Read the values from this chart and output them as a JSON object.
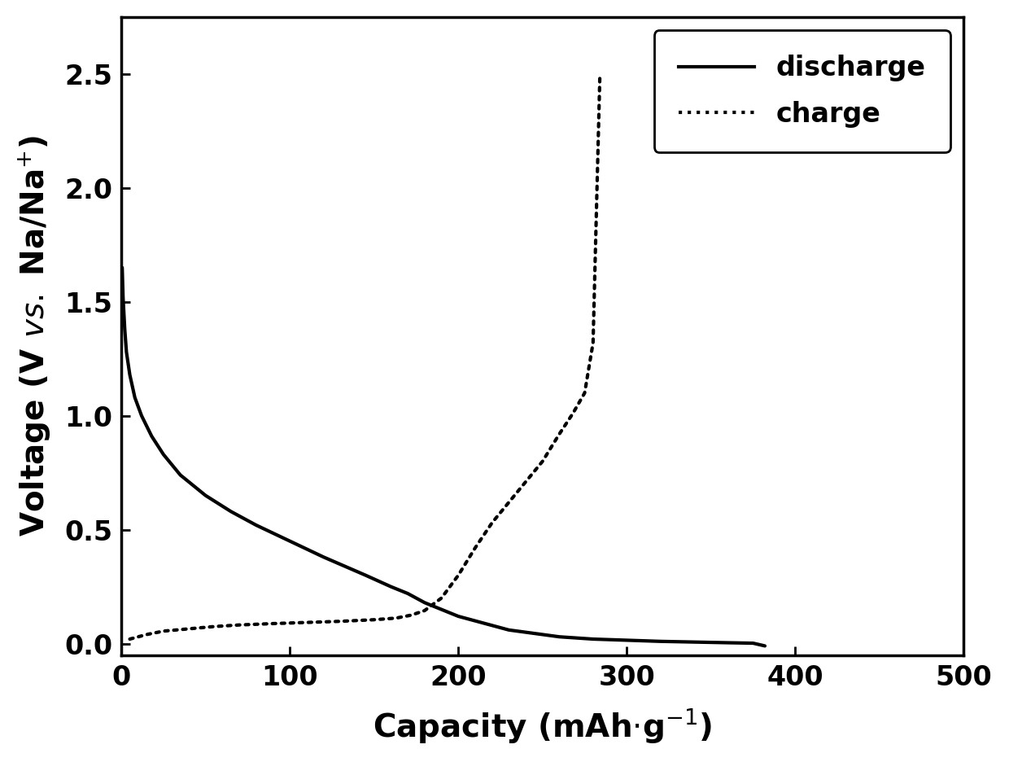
{
  "discharge_x": [
    0.5,
    1,
    2,
    3,
    5,
    8,
    12,
    18,
    25,
    35,
    50,
    65,
    80,
    100,
    120,
    145,
    160,
    170,
    180,
    190,
    200,
    210,
    220,
    230,
    245,
    260,
    280,
    300,
    320,
    340,
    360,
    375,
    382
  ],
  "discharge_y": [
    1.65,
    1.52,
    1.38,
    1.28,
    1.18,
    1.08,
    1.0,
    0.91,
    0.83,
    0.74,
    0.65,
    0.58,
    0.52,
    0.45,
    0.38,
    0.3,
    0.25,
    0.22,
    0.18,
    0.15,
    0.12,
    0.1,
    0.08,
    0.06,
    0.045,
    0.03,
    0.02,
    0.015,
    0.01,
    0.007,
    0.004,
    0.002,
    -0.01
  ],
  "charge_x": [
    5,
    15,
    25,
    40,
    55,
    70,
    90,
    110,
    130,
    150,
    163,
    172,
    180,
    190,
    200,
    210,
    220,
    230,
    240,
    250,
    260,
    268,
    275,
    280,
    284
  ],
  "charge_y": [
    0.02,
    0.04,
    0.055,
    0.065,
    0.075,
    0.082,
    0.088,
    0.093,
    0.098,
    0.105,
    0.112,
    0.125,
    0.145,
    0.2,
    0.3,
    0.42,
    0.53,
    0.62,
    0.71,
    0.8,
    0.92,
    1.01,
    1.1,
    1.32,
    2.48
  ],
  "xlim": [
    0,
    500
  ],
  "ylim": [
    -0.05,
    2.75
  ],
  "xticks": [
    0,
    100,
    200,
    300,
    400,
    500
  ],
  "yticks": [
    0.0,
    0.5,
    1.0,
    1.5,
    2.0,
    2.5
  ],
  "xlabel": "Capacity (mAh$\\cdot$g$^{-1}$)",
  "ylabel": "Voltage (V $vs.$ Na/Na$^{+}$)",
  "legend_discharge": "discharge",
  "legend_charge": "charge",
  "line_color": "#000000",
  "linewidth": 3.0,
  "background_color": "#ffffff",
  "tick_fontsize": 24,
  "label_fontsize": 28
}
